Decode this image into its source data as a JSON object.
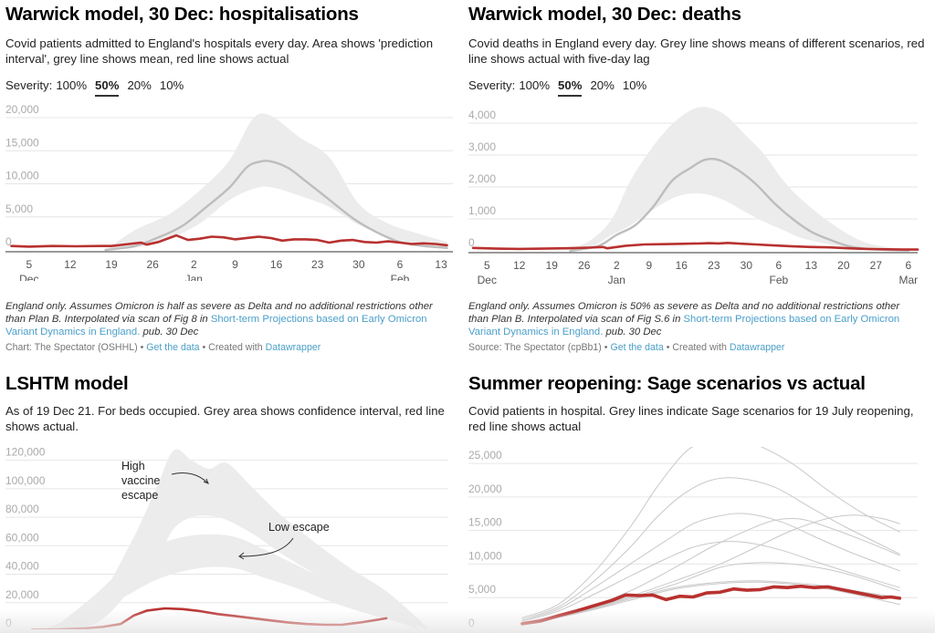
{
  "colors": {
    "actual": "#b8312f",
    "mean": "#bdbdbd",
    "band": "#ececec",
    "grid": "#e6e6e6",
    "axis": "#333333",
    "tick": "#aaaaaa",
    "link": "#4a9fc9"
  },
  "panels": {
    "hosp": {
      "title": "Warwick model, 30 Dec: hospitalisations",
      "subtitle": "Covid patients admitted to England's hospitals every day. Area shows 'prediction interval', grey line shows mean, red line shows actual",
      "severity_label": "Severity:",
      "severity_options": [
        "100%",
        "50%",
        "20%",
        "10%"
      ],
      "severity_selected": "50%",
      "notes_italic": "England only. Assumes Omicron is half as severe as Delta and no additional restrictions other than Plan B. Interpolated via scan of Fig 8 in ",
      "notes_link": "Short-term Projections based on Early Omicron Variant Dynamics in England.",
      "notes_tail": " pub. 30 Dec",
      "footer_source": "Chart: The Spectator (OSHHL)",
      "footer_get_data": "Get the data",
      "footer_created": "Created with",
      "footer_tool": "Datawrapper"
    },
    "deaths": {
      "title": "Warwick model, 30 Dec: deaths",
      "subtitle": "Covid deaths in England every day. Grey line shows means of different scenarios, red line shows actual with five-day lag",
      "severity_label": "Severity:",
      "severity_options": [
        "100%",
        "50%",
        "20%",
        "10%"
      ],
      "severity_selected": "50%",
      "notes_italic": "England only. Assumes Omicron is 50% as severe as Delta and no additional restrictions other than Plan B. Interpolated via scan of Fig S.6 in ",
      "notes_link": "Short-term Projections based on Early Omicron Variant Dynamics in England.",
      "notes_tail": " pub. 30 Dec",
      "footer_source": "Source: The Spectator (cpBb1)",
      "footer_get_data": "Get the data",
      "footer_created": "Created with",
      "footer_tool": "Datawrapper"
    },
    "lshtm": {
      "title": "LSHTM model",
      "subtitle": "As of 19 Dec 21. For beds occupied. Grey area shows confidence interval, red line shows actual."
    },
    "sage": {
      "title": "Summer reopening: Sage scenarios vs actual",
      "subtitle": "Covid patients in hospital. Grey lines indicate Sage scenarios for 19 July reopening, red line shows actual"
    }
  },
  "chart_data": [
    {
      "id": "hosp",
      "type": "area",
      "title": "Warwick model, 30 Dec: hospitalisations",
      "ylim": [
        0,
        20000
      ],
      "yticks": [
        "0",
        "5,000",
        "10,000",
        "15,000",
        "20,000"
      ],
      "ytick_values": [
        0,
        5000,
        10000,
        15000,
        20000
      ],
      "xlim_days": [
        0,
        76
      ],
      "xticks": [
        {
          "day": 4,
          "label": "5",
          "month": "Dec"
        },
        {
          "day": 11,
          "label": "12"
        },
        {
          "day": 18,
          "label": "19"
        },
        {
          "day": 25,
          "label": "26"
        },
        {
          "day": 32,
          "label": "2",
          "month": "Jan"
        },
        {
          "day": 39,
          "label": "9"
        },
        {
          "day": 46,
          "label": "16"
        },
        {
          "day": 53,
          "label": "23"
        },
        {
          "day": 60,
          "label": "30"
        },
        {
          "day": 67,
          "label": "6",
          "month": "Feb"
        },
        {
          "day": 74,
          "label": "13"
        }
      ],
      "grid": true,
      "band": {
        "x": [
          17,
          22,
          28,
          33,
          38,
          42,
          45,
          50,
          55,
          60,
          65,
          70,
          75
        ],
        "low": [
          0,
          300,
          1800,
          4000,
          7500,
          9200,
          9500,
          8200,
          6500,
          3800,
          2000,
          800,
          300
        ],
        "high": [
          0,
          3000,
          5500,
          9000,
          13500,
          19800,
          20300,
          17000,
          14000,
          7000,
          4000,
          2500,
          1200
        ]
      },
      "series": [
        {
          "name": "mean",
          "x": [
            17,
            22,
            26,
            30,
            34,
            38,
            41,
            43,
            45,
            48,
            51,
            55,
            59,
            63,
            67,
            71,
            75
          ],
          "values": [
            0,
            600,
            1900,
            3600,
            6400,
            9400,
            12500,
            13300,
            13400,
            12400,
            10400,
            7600,
            4800,
            2700,
            1200,
            600,
            300
          ]
        },
        {
          "name": "actual",
          "x": [
            1,
            4,
            8,
            12,
            16,
            18,
            21,
            23,
            24,
            26,
            29,
            31,
            33,
            35,
            37,
            39,
            41,
            43,
            45,
            47,
            49,
            51,
            53,
            55,
            57,
            59,
            61,
            63,
            65,
            67,
            69,
            71,
            73,
            75
          ],
          "values": [
            600,
            500,
            600,
            550,
            600,
            600,
            900,
            1100,
            800,
            1200,
            2200,
            1500,
            1700,
            2000,
            1900,
            1600,
            1800,
            2000,
            1800,
            1400,
            1600,
            1600,
            1500,
            1100,
            1400,
            1500,
            1200,
            1100,
            1300,
            1100,
            900,
            1000,
            900,
            700
          ]
        }
      ]
    },
    {
      "id": "deaths",
      "type": "area",
      "title": "Warwick model, 30 Dec: deaths",
      "ylim": [
        0,
        4000
      ],
      "yticks": [
        "0",
        "1,000",
        "2,000",
        "3,000",
        "4,000"
      ],
      "ytick_values": [
        0,
        1000,
        2000,
        3000,
        4000
      ],
      "xlim_days": [
        0,
        97
      ],
      "xticks": [
        {
          "day": 4,
          "label": "5",
          "month": "Dec"
        },
        {
          "day": 11,
          "label": "12"
        },
        {
          "day": 18,
          "label": "19"
        },
        {
          "day": 25,
          "label": "26"
        },
        {
          "day": 32,
          "label": "2",
          "month": "Jan"
        },
        {
          "day": 39,
          "label": "9"
        },
        {
          "day": 46,
          "label": "16"
        },
        {
          "day": 53,
          "label": "23"
        },
        {
          "day": 60,
          "label": "30"
        },
        {
          "day": 67,
          "label": "6",
          "month": "Feb"
        },
        {
          "day": 74,
          "label": "13"
        },
        {
          "day": 81,
          "label": "20"
        },
        {
          "day": 88,
          "label": "27"
        },
        {
          "day": 95,
          "label": "6",
          "month": "Mar"
        }
      ],
      "grid": true,
      "band": {
        "x": [
          20,
          26,
          31,
          35,
          40,
          45,
          50,
          55,
          60,
          64,
          68,
          72,
          78,
          85,
          92,
          97
        ],
        "low": [
          0,
          100,
          500,
          800,
          1300,
          1700,
          1800,
          1600,
          1200,
          900,
          650,
          400,
          200,
          60,
          20,
          0
        ],
        "high": [
          0,
          300,
          1000,
          2200,
          3300,
          4100,
          4500,
          4300,
          3600,
          3000,
          2200,
          1600,
          900,
          300,
          80,
          0
        ]
      },
      "series": [
        {
          "name": "mean",
          "x": [
            22,
            28,
            32,
            36,
            40,
            44,
            48,
            51,
            54,
            58,
            62,
            66,
            70,
            74,
            78,
            82,
            86,
            90,
            95
          ],
          "values": [
            0,
            150,
            500,
            800,
            1400,
            2200,
            2600,
            2850,
            2850,
            2550,
            2100,
            1500,
            1000,
            600,
            350,
            150,
            60,
            30,
            10
          ]
        },
        {
          "name": "actual",
          "x": [
            1,
            6,
            11,
            16,
            21,
            26,
            29,
            30,
            34,
            38,
            42,
            46,
            50,
            52,
            54,
            56,
            58,
            62,
            66,
            70,
            74,
            78,
            82,
            86,
            90,
            94,
            97
          ],
          "values": [
            90,
            70,
            60,
            70,
            80,
            100,
            120,
            80,
            160,
            200,
            210,
            220,
            230,
            240,
            230,
            250,
            230,
            200,
            170,
            140,
            120,
            110,
            80,
            60,
            50,
            40,
            40
          ]
        }
      ]
    },
    {
      "id": "lshtm",
      "type": "area",
      "title": "LSHTM model",
      "ylim": [
        0,
        130000
      ],
      "yticks": [
        "0",
        "20,000",
        "40,000",
        "60,000",
        "80,000",
        "100,000",
        "120,000"
      ],
      "ytick_values": [
        0,
        20000,
        40000,
        60000,
        80000,
        100000,
        120000
      ],
      "xlim_days": [
        0,
        100
      ],
      "grid": true,
      "annotations": [
        {
          "text": "High vaccine escape",
          "lines": [
            "High",
            "vaccine",
            "escape"
          ]
        },
        {
          "text": "Low escape",
          "lines": [
            "Low escape"
          ]
        }
      ],
      "bands": [
        {
          "name": "High vaccine escape",
          "x": [
            8,
            20,
            28,
            34,
            38,
            42,
            46,
            50,
            56,
            62,
            70,
            78,
            86,
            92,
            96
          ],
          "low": [
            0,
            5000,
            28000,
            50000,
            72000,
            80000,
            81000,
            78000,
            68000,
            55000,
            40000,
            26000,
            14000,
            5000,
            0
          ],
          "high": [
            0,
            20000,
            60000,
            100000,
            127000,
            120000,
            114000,
            118000,
            100000,
            82000,
            62000,
            44000,
            28000,
            12000,
            0
          ]
        },
        {
          "name": "Low escape",
          "x": [
            10,
            20,
            28,
            34,
            40,
            46,
            52,
            58,
            66,
            74,
            82,
            90,
            94
          ],
          "low": [
            0,
            12000,
            26000,
            36000,
            42000,
            45000,
            44000,
            38000,
            30000,
            20000,
            12000,
            5000,
            0
          ],
          "high": [
            0,
            25000,
            48000,
            60000,
            66000,
            68000,
            66000,
            58000,
            46000,
            34000,
            22000,
            10000,
            0
          ]
        }
      ],
      "series": [
        {
          "name": "actual",
          "x": [
            6,
            12,
            18,
            22,
            26,
            29,
            32,
            36,
            40,
            44,
            48,
            52,
            56,
            60,
            64,
            68,
            72,
            76,
            80,
            84,
            86
          ],
          "values": [
            1000,
            1200,
            2000,
            3000,
            5000,
            11000,
            14500,
            16000,
            15500,
            14000,
            12000,
            10500,
            9000,
            7500,
            6000,
            5000,
            4500,
            4500,
            6000,
            8000,
            9000
          ]
        }
      ]
    },
    {
      "id": "sage",
      "type": "line",
      "title": "Summer reopening: Sage scenarios vs actual",
      "ylim": [
        0,
        28000
      ],
      "yticks": [
        "0",
        "5,000",
        "10,000",
        "15,000",
        "20,000",
        "25,000"
      ],
      "ytick_values": [
        0,
        5000,
        10000,
        15000,
        20000,
        25000
      ],
      "xlim_days": [
        0,
        100
      ],
      "grid": true,
      "series": [
        {
          "name": "scenario-1",
          "x": [
            12,
            20,
            28,
            36,
            42,
            48,
            52,
            58,
            64,
            72,
            80,
            88,
            96
          ],
          "values": [
            2000,
            4000,
            8800,
            15500,
            21500,
            26500,
            28000,
            28500,
            27800,
            25000,
            21000,
            17500,
            14800
          ]
        },
        {
          "name": "scenario-2",
          "x": [
            12,
            20,
            28,
            36,
            42,
            48,
            54,
            60,
            68,
            76,
            84,
            96
          ],
          "values": [
            1800,
            3600,
            7500,
            12500,
            17000,
            20500,
            22500,
            22800,
            21500,
            18500,
            15500,
            11500
          ]
        },
        {
          "name": "scenario-3",
          "x": [
            12,
            20,
            28,
            36,
            44,
            50,
            56,
            62,
            70,
            78,
            86,
            96
          ],
          "values": [
            1600,
            3300,
            6500,
            10000,
            13500,
            16000,
            17200,
            17500,
            16200,
            13800,
            11500,
            9000
          ]
        },
        {
          "name": "scenario-4",
          "x": [
            12,
            20,
            28,
            36,
            44,
            50,
            56,
            62,
            70,
            78,
            86,
            96
          ],
          "values": [
            1500,
            3000,
            5500,
            8200,
            10800,
            12500,
            13300,
            13200,
            12000,
            10200,
            8500,
            6500
          ]
        },
        {
          "name": "scenario-5",
          "x": [
            12,
            24,
            36,
            46,
            54,
            62,
            68,
            74,
            80,
            88,
            96
          ],
          "values": [
            1300,
            3000,
            6000,
            9500,
            12500,
            15000,
            16500,
            16700,
            15500,
            13500,
            11300
          ]
        },
        {
          "name": "scenario-6",
          "x": [
            12,
            24,
            36,
            46,
            56,
            64,
            72,
            80,
            86,
            92,
            96
          ],
          "values": [
            1200,
            2800,
            5200,
            7500,
            10000,
            12500,
            15000,
            16800,
            17300,
            16800,
            16000
          ]
        },
        {
          "name": "scenario-7",
          "x": [
            12,
            24,
            36,
            46,
            56,
            64,
            72,
            80,
            88,
            96
          ],
          "values": [
            1200,
            2800,
            5000,
            7000,
            9500,
            10200,
            10000,
            9200,
            7800,
            6000
          ]
        },
        {
          "name": "scenario-8",
          "x": [
            12,
            24,
            36,
            46,
            56,
            64,
            72,
            80,
            88,
            96
          ],
          "values": [
            1100,
            2700,
            4800,
            6500,
            7300,
            7500,
            7200,
            6700,
            5800,
            5000
          ]
        },
        {
          "name": "scenario-9",
          "x": [
            12,
            24,
            36,
            46,
            56,
            64,
            72,
            80,
            88,
            96
          ],
          "values": [
            1000,
            2600,
            4600,
            6300,
            7100,
            7300,
            7000,
            6300,
            5200,
            4000
          ]
        },
        {
          "name": "actual",
          "x": [
            12,
            16,
            20,
            24,
            28,
            32,
            35,
            38,
            41,
            44,
            47,
            50,
            53,
            56,
            59,
            62,
            65,
            68,
            71,
            74,
            77,
            80,
            83,
            86,
            89,
            92,
            94,
            96
          ],
          "values": [
            1100,
            1500,
            2300,
            3000,
            3800,
            4600,
            5400,
            5300,
            5400,
            4700,
            5200,
            5100,
            5700,
            5800,
            6300,
            6100,
            6200,
            6600,
            6500,
            6700,
            6500,
            6600,
            6200,
            5800,
            5400,
            5000,
            5100,
            4900
          ]
        }
      ]
    }
  ]
}
